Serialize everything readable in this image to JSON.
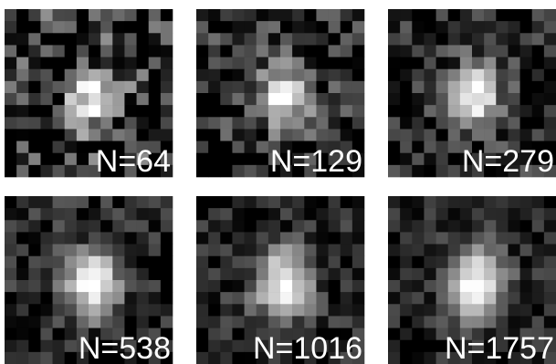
{
  "panels": [
    {
      "label": "N=64"
    },
    {
      "label": "N=129"
    },
    {
      "label": "N=279"
    },
    {
      "label": "N=538"
    },
    {
      "label": "N=1016"
    },
    {
      "label": "N=1757"
    }
  ]
}
